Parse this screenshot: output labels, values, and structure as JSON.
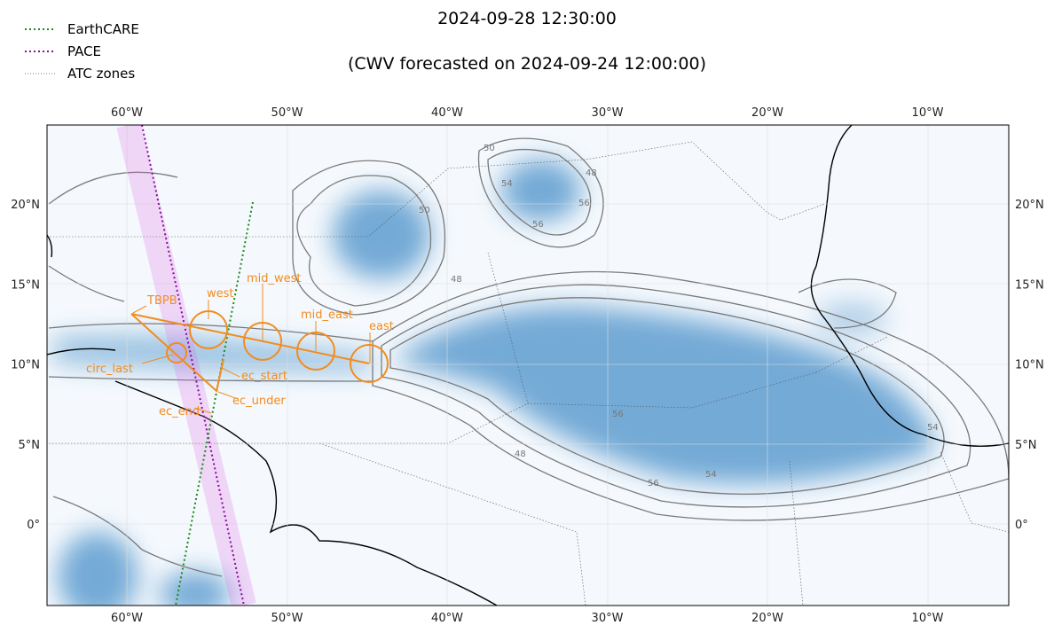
{
  "header": {
    "title": "2024-09-28 12:30:00",
    "subtitle": "(CWV forecasted on 2024-09-24 12:00:00)"
  },
  "legend": {
    "entries": [
      "EarthCARE",
      "PACE",
      "ATC zones"
    ]
  },
  "map": {
    "lon_labels": [
      "60°W",
      "50°W",
      "40°W",
      "30°W",
      "20°W",
      "10°W"
    ],
    "lat_labels": [
      "20°N",
      "15°N",
      "10°N",
      "5°N",
      "0°"
    ],
    "points": [
      "TBPB",
      "west",
      "mid_west",
      "mid_east",
      "east",
      "circ_last",
      "ec_start",
      "ec_under",
      "ec_end"
    ],
    "contour_labels": [
      "50",
      "48",
      "56",
      "54",
      "56",
      "48",
      "50",
      "56",
      "54",
      "48",
      "56",
      "54"
    ]
  }
}
